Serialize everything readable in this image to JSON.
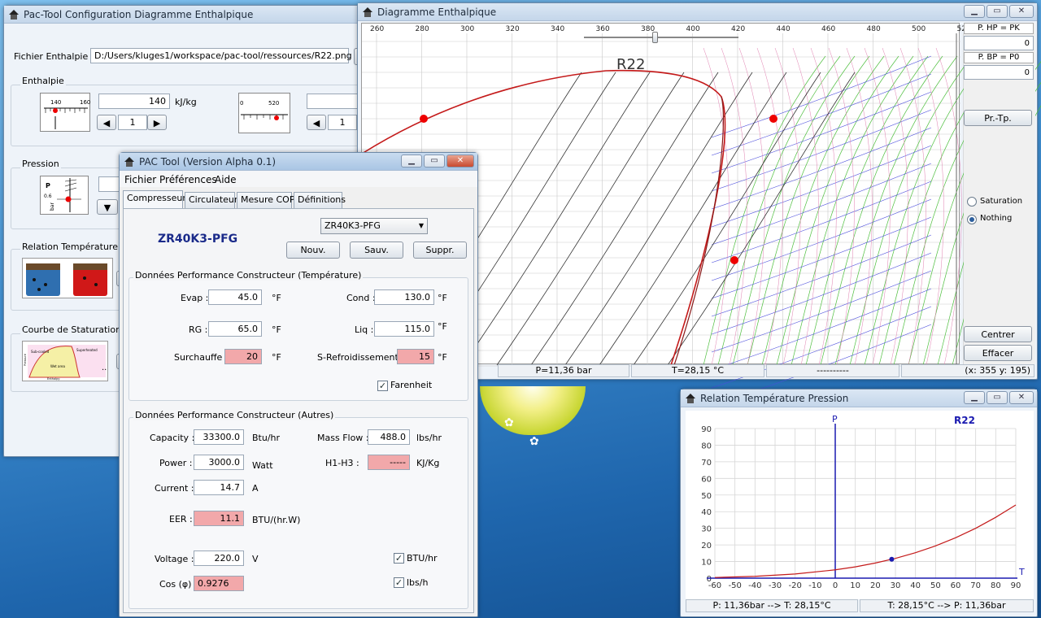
{
  "config_window": {
    "title": "Pac-Tool Configuration Diagramme Enthalpique",
    "file_label": "Fichier Enthalpie",
    "file_path": "D:/Users/kluges1/workspace/pac-tool/ressources/R22.png",
    "enthalpie_title": "Enthalpie",
    "enth1_value": "140",
    "enth_unit": "kJ/kg",
    "enth1_step": "1",
    "enth2_step": "1",
    "gauge1_labels": [
      "140",
      "160"
    ],
    "gauge2_label": "520",
    "pression_title": "Pression",
    "gauge3_labels": [
      "P",
      "0.6",
      "bar"
    ],
    "relation_title": "Relation Température / P",
    "courbe_title": "Courbe de Staturation",
    "courbe_labels": [
      "Sub-cooled",
      "Superheated",
      "Wet area",
      "Enthalpy",
      "Pressure"
    ]
  },
  "diagram_window": {
    "title": "Diagramme Enthalpique",
    "axis_ticks": [
      "260",
      "280",
      "300",
      "320",
      "340",
      "360",
      "380",
      "400",
      "420",
      "440",
      "460",
      "480",
      "500",
      "52"
    ],
    "refrigerant": "R22",
    "side": {
      "hp_label": "P. HP = PK",
      "hp_value": "0",
      "bp_label": "P. BP = P0",
      "bp_value": "0",
      "prtp_button": "Pr.-Tp.",
      "radio_saturation": "Saturation",
      "radio_nothing": "Nothing",
      "centrer_button": "Centrer",
      "effacer_button": "Effacer"
    },
    "status": {
      "pressure": "P=11,36 bar",
      "temperature": "T=28,15 °C",
      "dashes": "----------",
      "coords": "(x: 355 y: 195)"
    }
  },
  "pac_window": {
    "title": "PAC Tool (Version Alpha 0.1)",
    "menu": [
      "Fichier",
      "Préférences",
      "Aide"
    ],
    "tabs": [
      "Compresseur",
      "Circulateur",
      "Mesure COP",
      "Définitions"
    ],
    "model_select": "ZR40K3-PFG",
    "model_name": "ZR40K3-PFG",
    "btn_nouv": "Nouv.",
    "btn_sauv": "Sauv.",
    "btn_suppr": "Suppr.",
    "group1_title": "Données Performance Constructeur (Température)",
    "evap_label": "Evap :",
    "evap_value": "45.0",
    "cond_label": "Cond :",
    "cond_value": "130.0",
    "rg_label": "RG :",
    "rg_value": "65.0",
    "liq_label": "Liq :",
    "liq_value": "115.0",
    "surch_label": "Surchauffe :",
    "surch_value": "20",
    "sref_label": "S-Refroidissement :",
    "sref_value": "15",
    "unit_f": "°F",
    "farenheit_label": "Farenheit",
    "group2_title": "Données Performance Constructeur (Autres)",
    "capacity_label": "Capacity :",
    "capacity_value": "33300.0",
    "capacity_unit": "Btu/hr",
    "massflow_label": "Mass Flow :",
    "massflow_value": "488.0",
    "massflow_unit": "lbs/hr",
    "power_label": "Power :",
    "power_value": "3000.0",
    "power_unit": "Watt",
    "h1h3_label": "H1-H3 :",
    "h1h3_value": "-----",
    "h1h3_unit": "KJ/Kg",
    "current_label": "Current :",
    "current_value": "14.7",
    "current_unit": "A",
    "eer_label": "EER :",
    "eer_value": "11.1",
    "eer_unit": "BTU/(hr.W)",
    "voltage_label": "Voltage :",
    "voltage_value": "220.0",
    "voltage_unit": "V",
    "cos_label": "Cos (φ)",
    "cos_value": "0.9276",
    "btuhr_label": "BTU/hr",
    "lbsh_label": "lbs/h"
  },
  "relation_window": {
    "title": "Relation Température Pression",
    "p_axis": "P",
    "t_axis": "T",
    "refrigerant": "R22",
    "y_ticks": [
      "90",
      "80",
      "70",
      "60",
      "50",
      "40",
      "30",
      "20",
      "10",
      "0"
    ],
    "x_ticks": [
      "-60",
      "-50",
      "-40",
      "-30",
      "-20",
      "-10",
      "0",
      "10",
      "20",
      "30",
      "40",
      "50",
      "60",
      "70",
      "80",
      "90"
    ],
    "status_left": "P: 11,36bar --> T: 28,15°C",
    "status_right": "T: 28,15°C --> P: 11,36bar"
  },
  "chart_data": {
    "type": "line",
    "xlabel": "T",
    "ylabel": "P",
    "xlim": [
      -60,
      90
    ],
    "ylim": [
      0,
      90
    ],
    "series": [
      {
        "name": "R22",
        "x": [
          -60,
          -40,
          -20,
          0,
          10,
          20,
          30,
          40,
          50,
          60,
          70,
          80,
          90
        ],
        "y": [
          0.4,
          1.1,
          2.5,
          5.0,
          6.8,
          9.1,
          11.9,
          15.3,
          19.4,
          24.3,
          30.0,
          36.6,
          44.0
        ]
      }
    ],
    "marker": {
      "x": 28.15,
      "y": 11.36
    }
  }
}
